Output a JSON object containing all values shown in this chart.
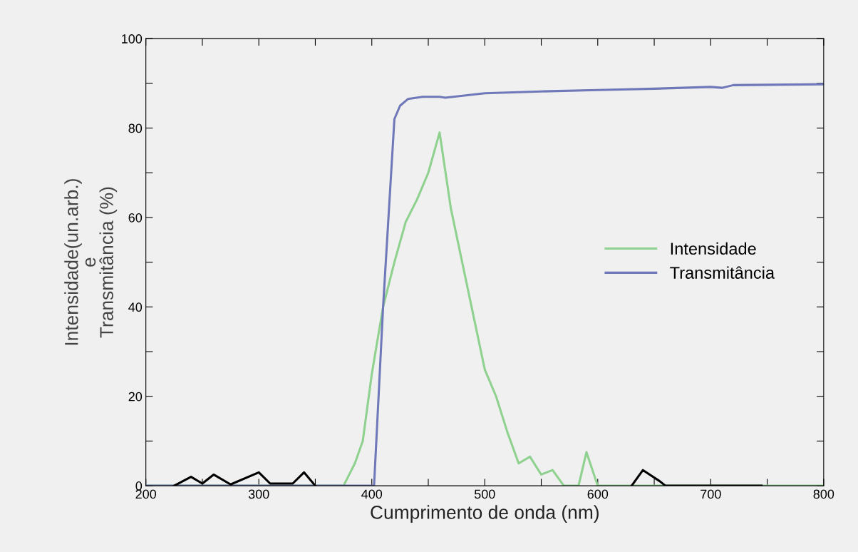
{
  "chart_data": {
    "type": "line",
    "xlabel": "Cumprimento de onda (nm)",
    "ylabel": "Intensidade(un.arb.)\ne\nTransmitância (%)",
    "xlim": [
      200,
      800
    ],
    "ylim": [
      0,
      100
    ],
    "xticks": [
      200,
      {
        "value": 250,
        "label": null
      },
      300,
      {
        "value": 350,
        "label": null
      },
      400,
      {
        "value": 450,
        "label": null
      },
      500,
      {
        "value": 550,
        "label": null
      },
      600,
      {
        "value": 650,
        "label": null
      },
      700,
      {
        "value": 750,
        "label": null
      },
      800
    ],
    "yticks": [
      0,
      {
        "value": 10,
        "label": null
      },
      20,
      {
        "value": 30,
        "label": null
      },
      40,
      {
        "value": 50,
        "label": null
      },
      60,
      {
        "value": 70,
        "label": null
      },
      80,
      {
        "value": 90,
        "label": null
      },
      100
    ],
    "grid": false,
    "legend": "center right",
    "marker": "none",
    "line_style": "solid",
    "series": [
      {
        "name": "Intensidade",
        "color": "#8fd18f",
        "x": [
          200,
          375,
          385,
          392,
          400,
          410,
          420,
          430,
          440,
          450,
          460,
          470,
          480,
          490,
          500,
          510,
          520,
          530,
          540,
          550,
          560,
          570,
          583,
          590,
          600,
          700,
          800
        ],
        "values": [
          0,
          0,
          5,
          10,
          25,
          40,
          50,
          59,
          64,
          70,
          79,
          62,
          50,
          38,
          26,
          20,
          12,
          5,
          6.5,
          2.5,
          3.5,
          0,
          0,
          7.5,
          0,
          0,
          0
        ]
      },
      {
        "name": "Transmitância",
        "color": "#6f78b8",
        "x": [
          200,
          402,
          410,
          420,
          425,
          432,
          445,
          460,
          465,
          500,
          550,
          600,
          650,
          700,
          710,
          720,
          800
        ],
        "values": [
          0,
          0,
          40,
          82,
          85,
          86.5,
          87,
          87,
          86.8,
          87.8,
          88.2,
          88.5,
          88.8,
          89.2,
          89,
          89.6,
          89.8
        ]
      },
      {
        "color": "#000000",
        "x": [
          225,
          240,
          250,
          260,
          275,
          300,
          310,
          330,
          340,
          350,
          351,
          630,
          640,
          655,
          660,
          700,
          745
        ],
        "values": [
          0,
          2,
          0.5,
          2.5,
          0.3,
          3,
          0.5,
          0.5,
          3,
          0,
          null,
          0,
          3.5,
          1,
          0,
          0,
          0
        ]
      }
    ]
  }
}
